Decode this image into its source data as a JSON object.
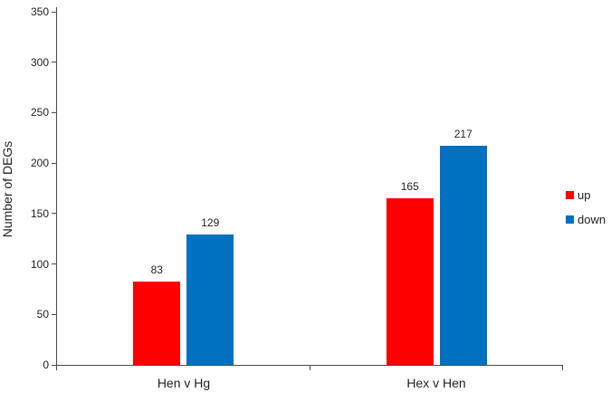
{
  "chart_data": {
    "type": "bar",
    "title": "",
    "xlabel": "",
    "ylabel": "Number of DEGs",
    "categories": [
      "Hen v Hg",
      "Hex v Hen"
    ],
    "series": [
      {
        "name": "up",
        "color": "#fe0000",
        "values": [
          83,
          165
        ]
      },
      {
        "name": "down",
        "color": "#0070c0",
        "values": [
          129,
          217
        ]
      }
    ],
    "ylim": [
      0,
      350
    ],
    "yticks": [
      0,
      50,
      100,
      150,
      200,
      250,
      300,
      350
    ],
    "grid": false,
    "legend_position": "right",
    "value_labels": true,
    "colors": {
      "axis": "#4a4a4a",
      "text": "#1f1f1f",
      "background": "#ffffff"
    }
  }
}
